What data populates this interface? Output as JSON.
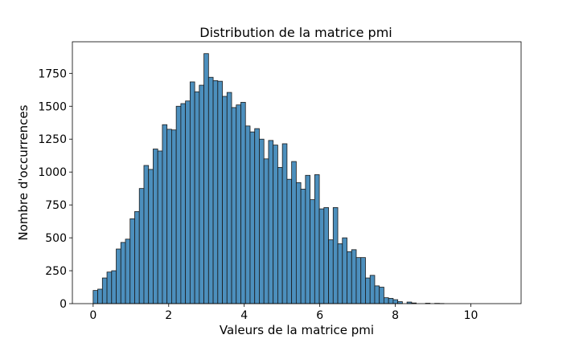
{
  "chart_data": {
    "type": "bar",
    "title": "Distribution de la matrice pmi",
    "xlabel": "Valeurs de la matrice pmi",
    "ylabel": "Nombre d'occurrences",
    "xlim": [
      -0.55,
      11.33
    ],
    "ylim": [
      0,
      1990
    ],
    "x_ticks": [
      0,
      2,
      4,
      6,
      8,
      10
    ],
    "y_ticks": [
      0,
      250,
      500,
      750,
      1000,
      1250,
      1500,
      1750
    ],
    "bin_start": 0,
    "bin_width": 0.1222,
    "bar_color": "#4c8fbd",
    "edge_color": "#1a1a1a",
    "grid": false,
    "values": [
      100,
      110,
      195,
      240,
      250,
      415,
      465,
      490,
      645,
      700,
      875,
      1050,
      1020,
      1175,
      1160,
      1360,
      1325,
      1320,
      1500,
      1520,
      1540,
      1685,
      1610,
      1660,
      1900,
      1720,
      1695,
      1690,
      1575,
      1605,
      1490,
      1510,
      1530,
      1350,
      1305,
      1330,
      1250,
      1100,
      1240,
      1205,
      1035,
      1215,
      945,
      1080,
      920,
      870,
      975,
      790,
      980,
      720,
      730,
      485,
      730,
      455,
      500,
      395,
      410,
      350,
      350,
      195,
      215,
      135,
      125,
      45,
      40,
      30,
      15,
      0,
      12,
      5,
      0,
      0,
      3,
      0,
      2,
      1,
      0,
      0,
      0,
      0
    ]
  }
}
